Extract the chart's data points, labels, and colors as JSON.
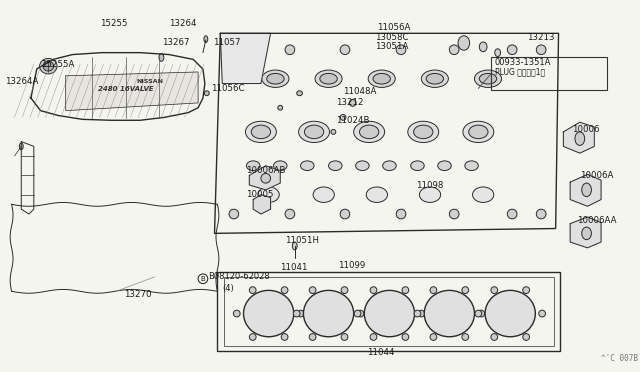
{
  "bg_color": "#f5f5f0",
  "line_color": "#2a2a2a",
  "label_color": "#1a1a1a",
  "fig_width": 6.4,
  "fig_height": 3.72,
  "dpi": 100,
  "watermark": "^'C 007B",
  "plug_box_label1": "00933-1351A",
  "plug_box_label2": "PLUG プラグ（1）"
}
